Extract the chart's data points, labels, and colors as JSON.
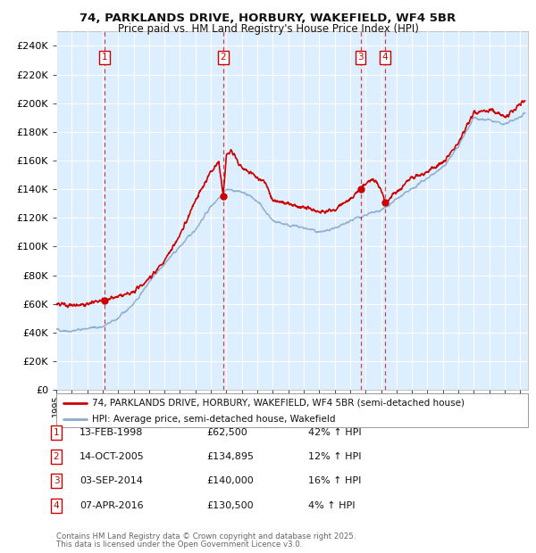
{
  "title1": "74, PARKLANDS DRIVE, HORBURY, WAKEFIELD, WF4 5BR",
  "title2": "Price paid vs. HM Land Registry's House Price Index (HPI)",
  "ylim": [
    0,
    250000
  ],
  "yticks": [
    0,
    20000,
    40000,
    60000,
    80000,
    100000,
    120000,
    140000,
    160000,
    180000,
    200000,
    220000,
    240000
  ],
  "xlim_start": 1995.0,
  "xlim_end": 2025.5,
  "background_color": "#ffffff",
  "plot_bg_color": "#ddeeff",
  "grid_color": "#ffffff",
  "price_paid_color": "#cc0000",
  "hpi_color": "#88aacc",
  "transactions": [
    {
      "label": "1",
      "date_dec": 1998.12,
      "price": 62500
    },
    {
      "label": "2",
      "date_dec": 2005.79,
      "price": 134895
    },
    {
      "label": "3",
      "date_dec": 2014.67,
      "price": 140000
    },
    {
      "label": "4",
      "date_dec": 2016.27,
      "price": 130500
    }
  ],
  "table_rows": [
    {
      "num": "1",
      "date": "13-FEB-1998",
      "price": "£62,500",
      "hpi": "42% ↑ HPI"
    },
    {
      "num": "2",
      "date": "14-OCT-2005",
      "price": "£134,895",
      "hpi": "12% ↑ HPI"
    },
    {
      "num": "3",
      "date": "03-SEP-2014",
      "price": "£140,000",
      "hpi": "16% ↑ HPI"
    },
    {
      "num": "4",
      "date": "07-APR-2016",
      "price": "£130,500",
      "hpi": "4% ↑ HPI"
    }
  ],
  "legend_line1": "74, PARKLANDS DRIVE, HORBURY, WAKEFIELD, WF4 5BR (semi-detached house)",
  "legend_line2": "HPI: Average price, semi-detached house, Wakefield",
  "footer1": "Contains HM Land Registry data © Crown copyright and database right 2025.",
  "footer2": "This data is licensed under the Open Government Licence v3.0."
}
